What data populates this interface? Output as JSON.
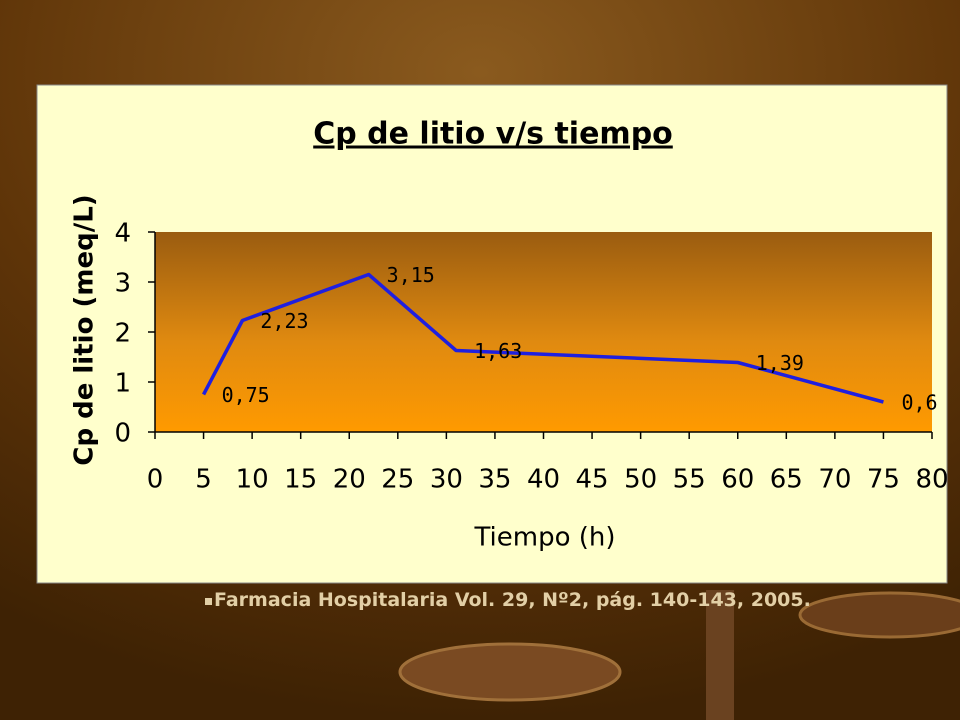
{
  "chart_data": {
    "type": "line",
    "title": "Cp de litio v/s tiempo",
    "x_label": "Tiempo (h)",
    "y_label": "Cp de litio (meq/L)",
    "x": [
      5,
      9,
      22,
      31,
      60,
      75
    ],
    "series": [
      {
        "color": "#1f1fe0",
        "values": [
          0.75,
          2.23,
          3.15,
          1.63,
          1.39,
          0.6
        ],
        "value_labels": [
          "0,75",
          "2,23",
          "3,15",
          "1,63",
          "1,39",
          "0,6"
        ]
      }
    ],
    "xlim": [
      0,
      80
    ],
    "xticks": [
      0,
      5,
      10,
      15,
      20,
      25,
      30,
      35,
      40,
      45,
      50,
      55,
      60,
      65,
      70,
      75,
      80
    ],
    "ylim": [
      0,
      4
    ],
    "yticks": [
      0,
      1,
      2,
      3,
      4
    ]
  },
  "footnote": "Farmacia Hospitalaria Vol. 29, Nº2, pág. 140-143, 2005."
}
